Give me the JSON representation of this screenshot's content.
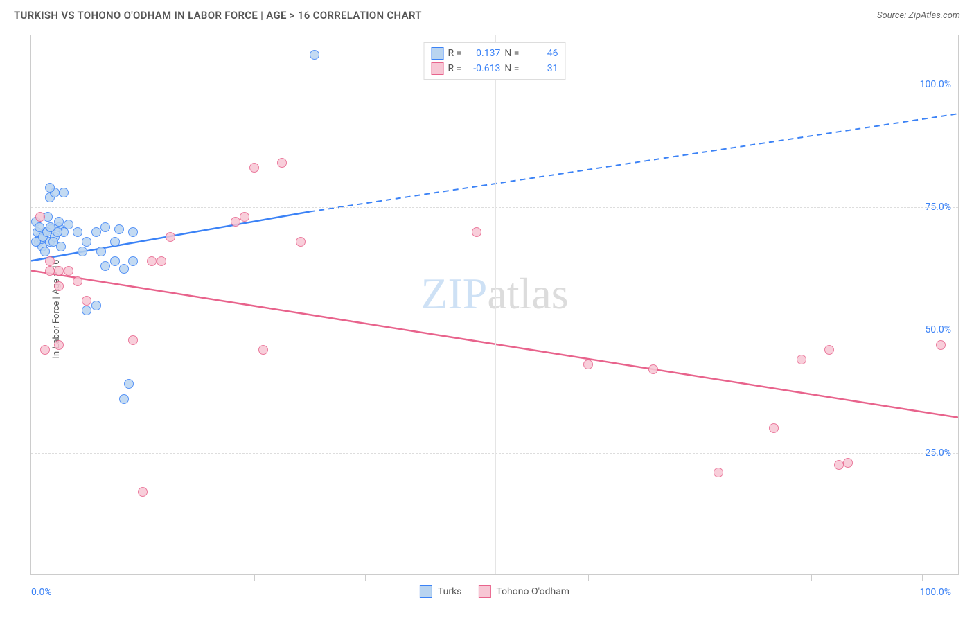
{
  "header": {
    "title": "TURKISH VS TOHONO O'ODHAM IN LABOR FORCE | AGE > 16 CORRELATION CHART",
    "source": "Source: ZipAtlas.com"
  },
  "chart": {
    "type": "scatter",
    "y_axis_title": "In Labor Force | Age > 16",
    "xlim": [
      0,
      100
    ],
    "ylim": [
      0,
      110
    ],
    "x_origin_label": "0.0%",
    "x_max_label": "100.0%",
    "y_ticks": [
      {
        "v": 25,
        "label": "25.0%"
      },
      {
        "v": 50,
        "label": "50.0%"
      },
      {
        "v": 75,
        "label": "75.0%"
      },
      {
        "v": 100,
        "label": "100.0%"
      }
    ],
    "x_grid_positions": [
      12,
      24,
      36,
      48,
      60,
      72,
      84,
      96
    ],
    "x_tick_positions": [
      12,
      24,
      36,
      48,
      60,
      72,
      84,
      96
    ],
    "colors": {
      "series1_fill": "#b9d4f0",
      "series1_stroke": "#3b82f6",
      "series2_fill": "#f7c6d4",
      "series2_stroke": "#e8638c",
      "grid": "#dddddd",
      "axis_label": "#3b82f6",
      "background": "#ffffff",
      "border": "#cccccc",
      "text": "#555555"
    },
    "series": [
      {
        "id": "turks",
        "name": "Turks",
        "fill": "#b9d4f0",
        "stroke": "#3b82f6",
        "R": "0.137",
        "N": "46",
        "trend": {
          "x1": 0,
          "y1": 64,
          "x2": 30,
          "y2": 74,
          "x3": 100,
          "y3": 94,
          "break_at": 30
        },
        "points": [
          [
            30.5,
            106
          ],
          [
            1,
            69
          ],
          [
            1.5,
            70
          ],
          [
            2,
            68
          ],
          [
            2.2,
            70.5
          ],
          [
            0.8,
            68
          ],
          [
            0.5,
            72
          ],
          [
            1.2,
            67
          ],
          [
            3,
            71
          ],
          [
            3.5,
            70
          ],
          [
            1.8,
            73
          ],
          [
            2.5,
            69
          ],
          [
            0.7,
            70
          ],
          [
            1.1,
            68.5
          ],
          [
            2,
            77
          ],
          [
            2.5,
            78
          ],
          [
            3.5,
            78
          ],
          [
            2.8,
            70
          ],
          [
            4,
            71.5
          ],
          [
            5,
            70
          ],
          [
            5.5,
            66
          ],
          [
            6,
            68
          ],
          [
            7,
            70
          ],
          [
            8,
            71
          ],
          [
            7.5,
            66
          ],
          [
            9,
            68
          ],
          [
            9.5,
            70.5
          ],
          [
            8,
            63
          ],
          [
            9,
            64
          ],
          [
            10,
            62.5
          ],
          [
            11,
            64
          ],
          [
            11,
            70
          ],
          [
            6,
            54
          ],
          [
            7,
            55
          ],
          [
            10.5,
            39
          ],
          [
            10,
            36
          ],
          [
            2,
            79
          ],
          [
            3,
            72
          ],
          [
            3.2,
            67
          ],
          [
            1.5,
            66
          ],
          [
            0.5,
            68
          ],
          [
            0.9,
            71
          ],
          [
            1.3,
            69
          ],
          [
            1.7,
            70
          ],
          [
            2.1,
            71
          ],
          [
            2.4,
            68
          ]
        ]
      },
      {
        "id": "tohono",
        "name": "Tohono O'odham",
        "fill": "#f7c6d4",
        "stroke": "#e8638c",
        "R": "-0.613",
        "N": "31",
        "trend": {
          "x1": 0,
          "y1": 62,
          "x2": 100,
          "y2": 32
        },
        "points": [
          [
            1,
            73
          ],
          [
            2,
            62
          ],
          [
            3,
            62
          ],
          [
            4,
            62
          ],
          [
            5,
            60
          ],
          [
            2,
            64
          ],
          [
            1.5,
            46
          ],
          [
            3,
            47
          ],
          [
            3,
            59
          ],
          [
            6,
            56
          ],
          [
            11,
            48
          ],
          [
            13,
            64
          ],
          [
            14,
            64
          ],
          [
            15,
            69
          ],
          [
            25,
            46
          ],
          [
            27,
            84
          ],
          [
            29,
            68
          ],
          [
            48,
            70
          ],
          [
            60,
            43
          ],
          [
            67,
            42
          ],
          [
            74,
            21
          ],
          [
            80,
            30
          ],
          [
            83,
            44
          ],
          [
            86,
            46
          ],
          [
            87,
            22.5
          ],
          [
            88,
            23
          ],
          [
            98,
            47
          ],
          [
            12,
            17
          ],
          [
            22,
            72
          ],
          [
            23,
            73
          ],
          [
            24,
            83
          ]
        ]
      }
    ],
    "watermark": {
      "zip": "ZIP",
      "atlas": "atlas"
    },
    "legend_top_format": {
      "R_label": "R =",
      "N_label": "N ="
    },
    "legend_bottom": [
      {
        "label": "Turks",
        "fill": "#b9d4f0",
        "stroke": "#3b82f6"
      },
      {
        "label": "Tohono O'odham",
        "fill": "#f7c6d4",
        "stroke": "#e8638c"
      }
    ]
  }
}
